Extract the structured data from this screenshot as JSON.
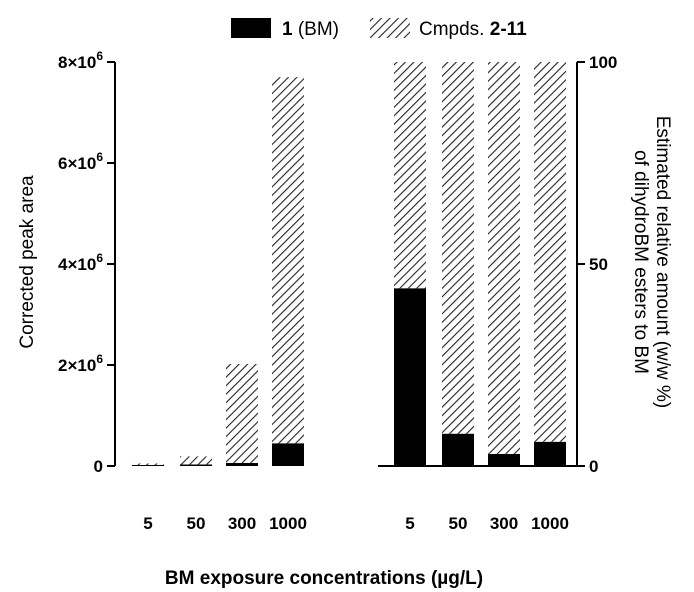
{
  "chart_data": [
    {
      "type": "bar",
      "stacked": true,
      "categories": [
        "5",
        "50",
        "300",
        "1000"
      ],
      "series": [
        {
          "name": "1 (BM)",
          "color": "#000000",
          "values": [
            20000,
            30000,
            60000,
            450000
          ]
        },
        {
          "name": "Cmpds. 2-11",
          "fill": "diagonal-hatch",
          "values": [
            30000,
            160000,
            1960000,
            7250000
          ]
        }
      ],
      "xlabel": "",
      "ylabel": "Corrected peak area",
      "ylim": [
        0,
        8000000
      ],
      "yticks": [
        {
          "value": 0,
          "mantissa": "0",
          "exp": ""
        },
        {
          "value": 2000000,
          "mantissa": "2×10",
          "exp": "6"
        },
        {
          "value": 4000000,
          "mantissa": "4×10",
          "exp": "6"
        },
        {
          "value": 6000000,
          "mantissa": "6×10",
          "exp": "6"
        },
        {
          "value": 8000000,
          "mantissa": "8×10",
          "exp": "6"
        }
      ],
      "grid": false
    },
    {
      "type": "bar",
      "stacked": true,
      "categories": [
        "5",
        "50",
        "300",
        "1000"
      ],
      "series": [
        {
          "name": "1 (BM)",
          "color": "#000000",
          "values": [
            44,
            8,
            3,
            6
          ]
        },
        {
          "name": "Cmpds. 2-11",
          "fill": "diagonal-hatch",
          "values": [
            56,
            92,
            97,
            94
          ]
        }
      ],
      "ylabel_line1": "Estimated relative amount (w/w %)",
      "ylabel_line2": "of dihydroBM esters to BM",
      "ylim": [
        0,
        100
      ],
      "yticks": [
        0,
        50,
        100
      ],
      "axis_side": "right",
      "grid": false
    }
  ],
  "shared_xlabel": "BM exposure concentrations (µg/L)",
  "legend": {
    "position": "top",
    "items": [
      {
        "bold": "1",
        "text": " (BM)",
        "swatch": "solid-black"
      },
      {
        "prefix": "Cmpds. ",
        "bold": "2-11",
        "swatch": "diagonal-hatch"
      }
    ]
  }
}
